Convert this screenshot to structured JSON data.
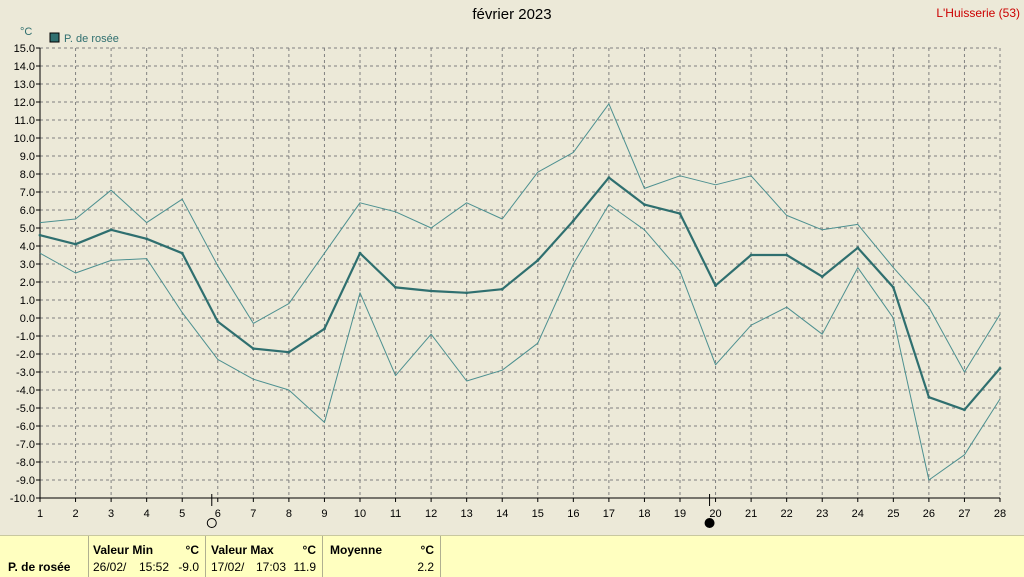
{
  "header": {
    "title": "février 2023",
    "station": "L'Huisserie (53)"
  },
  "colors": {
    "series": "#2f6f6f",
    "envelope": "#4d9090",
    "grid": "#808080",
    "background": "#ece9d8",
    "footer": "#ffffc0"
  },
  "chart_data": {
    "type": "line",
    "yunit": "°C",
    "ylim": [
      -10,
      15
    ],
    "yticks": [
      "15.0",
      "14.0",
      "13.0",
      "12.0",
      "11.0",
      "10.0",
      "9.0",
      "8.0",
      "7.0",
      "6.0",
      "5.0",
      "4.0",
      "3.0",
      "2.0",
      "1.0",
      "0.0",
      "-1.0",
      "-2.0",
      "-3.0",
      "-4.0",
      "-5.0",
      "-6.0",
      "-7.0",
      "-8.0",
      "-9.0",
      "-10.0"
    ],
    "x": [
      1,
      2,
      3,
      4,
      5,
      6,
      7,
      8,
      9,
      10,
      11,
      12,
      13,
      14,
      15,
      16,
      17,
      18,
      19,
      20,
      21,
      22,
      23,
      24,
      25,
      26,
      27,
      28
    ],
    "grid": true,
    "legend": {
      "position": "top-left",
      "label": "P. de rosée"
    },
    "moon_phases": [
      {
        "day": 6,
        "phase": "full-moon"
      },
      {
        "day": 20,
        "phase": "new-moon"
      }
    ],
    "series": [
      {
        "name": "P. de rosée",
        "values": [
          4.6,
          4.1,
          4.9,
          4.4,
          3.6,
          -0.2,
          -1.7,
          -1.9,
          -0.6,
          3.6,
          1.7,
          1.5,
          1.4,
          1.6,
          3.2,
          5.4,
          7.8,
          6.3,
          5.8,
          1.8,
          3.5,
          3.5,
          2.3,
          3.9,
          1.7,
          -4.4,
          -5.1,
          -2.8
        ]
      },
      {
        "role": "max",
        "values": [
          5.3,
          5.5,
          7.1,
          5.3,
          6.6,
          2.9,
          -0.3,
          0.8,
          3.6,
          6.4,
          5.9,
          5.0,
          6.4,
          5.5,
          8.1,
          9.2,
          11.9,
          7.2,
          7.9,
          7.4,
          7.9,
          5.7,
          4.9,
          5.2,
          2.8,
          0.6,
          -3.0,
          0.2
        ]
      },
      {
        "role": "min",
        "values": [
          3.6,
          2.5,
          3.2,
          3.3,
          0.3,
          -2.3,
          -3.4,
          -4.0,
          -5.8,
          1.4,
          -3.2,
          -0.9,
          -3.5,
          -2.9,
          -1.4,
          3.0,
          6.3,
          4.9,
          2.6,
          -2.6,
          -0.4,
          0.6,
          -0.9,
          2.8,
          0.0,
          -9.0,
          -7.6,
          -4.5
        ]
      }
    ]
  },
  "stats": {
    "series_label": "P. de rosée",
    "min": {
      "label": "Valeur Min",
      "unit": "°C",
      "date": "26/02/",
      "time": "15:52",
      "value": "-9.0"
    },
    "max": {
      "label": "Valeur Max",
      "unit": "°C",
      "date": "17/02/",
      "time": "17:03",
      "value": "11.9"
    },
    "avg": {
      "label": "Moyenne",
      "unit": "°C",
      "value": "2.2"
    }
  }
}
